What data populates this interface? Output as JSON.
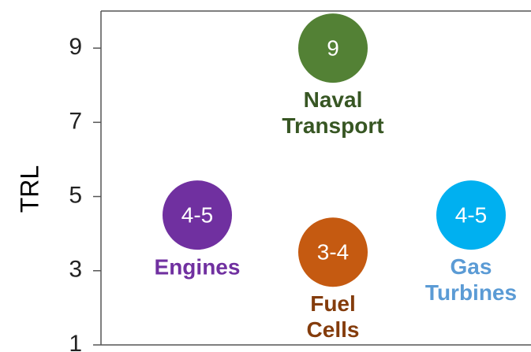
{
  "chart_data": {
    "type": "scatter",
    "y_label": "TRL",
    "categories": [
      "Engines",
      "Naval Transport",
      "Fuel Cells",
      "Gas Turbines"
    ],
    "values": [
      4.5,
      9,
      3.5,
      4.5
    ],
    "value_labels": [
      "4-5",
      "9",
      "3-4",
      "4-5"
    ],
    "colors": [
      "#7030a0",
      "#538135",
      "#c55a11",
      "#00b0f0"
    ],
    "label_colors": [
      "#7030a0",
      "#375623",
      "#843c0c",
      "#5b9bd5"
    ],
    "ylim": [
      1,
      10
    ],
    "yticks": [
      1,
      3,
      5,
      7,
      9
    ],
    "grid": false
  }
}
